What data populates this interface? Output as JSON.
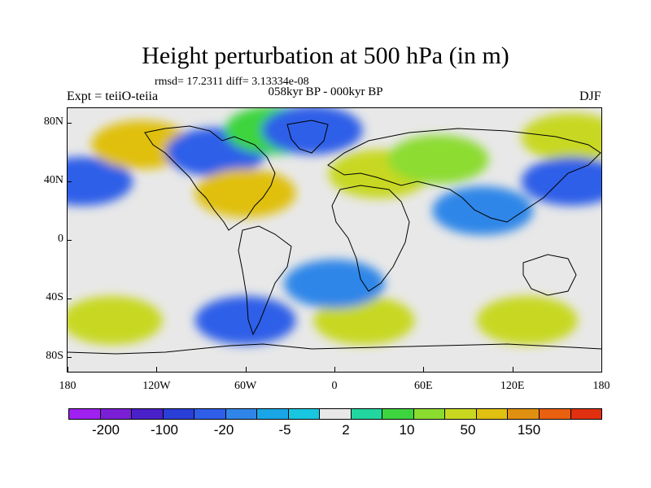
{
  "title": "Height perturbation at 500 hPa (in m)",
  "stats": "rmsd= 17.2311 diff= 3.13334e-08",
  "period": "058kyr BP - 000kyr BP",
  "experiment": "Expt = teiiO-teiia",
  "season": "DJF",
  "map": {
    "lon_range": [
      -180,
      180
    ],
    "lat_range": [
      -90,
      90
    ],
    "lat_labels": [
      {
        "lat": 80,
        "text": "80N"
      },
      {
        "lat": 40,
        "text": "40N"
      },
      {
        "lat": 0,
        "text": "0"
      },
      {
        "lat": -40,
        "text": "40S"
      },
      {
        "lat": -80,
        "text": "80S"
      }
    ],
    "lon_labels": [
      {
        "lon": -180,
        "text": "180"
      },
      {
        "lon": -120,
        "text": "120W"
      },
      {
        "lon": -60,
        "text": "60W"
      },
      {
        "lon": 0,
        "text": "0"
      },
      {
        "lon": 60,
        "text": "60E"
      },
      {
        "lon": 120,
        "text": "120E"
      },
      {
        "lon": 180,
        "text": "180"
      }
    ]
  },
  "colorbar": {
    "colors": [
      "#a020f0",
      "#7a1fd6",
      "#4a20c8",
      "#2a3fd8",
      "#2e5ee8",
      "#2f86e8",
      "#1aa6e6",
      "#18c6e0",
      "#e8e8e8",
      "#22d6a0",
      "#3ed43e",
      "#8cdc30",
      "#c8d820",
      "#e0c010",
      "#e09010",
      "#e86010",
      "#e03010"
    ],
    "labels": [
      "-200",
      "-100",
      "-20",
      "-5",
      "2",
      "10",
      "50",
      "150"
    ]
  },
  "chart_data": {
    "type": "heatmap",
    "title": "Height perturbation at 500 hPa (in m)",
    "units": "m",
    "xlim": [
      -180,
      180
    ],
    "ylim": [
      -90,
      90
    ],
    "anomaly_regions": [
      {
        "lon": -170,
        "lat": 40,
        "value": -30,
        "class": "low"
      },
      {
        "lon": -130,
        "lat": 65,
        "value": 60,
        "class": "high"
      },
      {
        "lon": -80,
        "lat": 60,
        "value": -40,
        "class": "low"
      },
      {
        "lon": -60,
        "lat": 32,
        "value": 60,
        "class": "high"
      },
      {
        "lon": -40,
        "lat": 75,
        "value": 10,
        "class": "high"
      },
      {
        "lon": -15,
        "lat": 75,
        "value": -20,
        "class": "low"
      },
      {
        "lon": 30,
        "lat": 45,
        "value": 40,
        "class": "high"
      },
      {
        "lon": 70,
        "lat": 55,
        "value": 15,
        "class": "high"
      },
      {
        "lon": 100,
        "lat": 20,
        "value": -15,
        "class": "low"
      },
      {
        "lon": 160,
        "lat": 70,
        "value": 40,
        "class": "high"
      },
      {
        "lon": 160,
        "lat": 40,
        "value": -20,
        "class": "low"
      },
      {
        "lon": -150,
        "lat": -55,
        "value": 40,
        "class": "high"
      },
      {
        "lon": -60,
        "lat": -55,
        "value": -30,
        "class": "low"
      },
      {
        "lon": 20,
        "lat": -55,
        "value": 30,
        "class": "high"
      },
      {
        "lon": 130,
        "lat": -55,
        "value": 40,
        "class": "high"
      },
      {
        "lon": 0,
        "lat": -30,
        "value": -10,
        "class": "low"
      }
    ]
  }
}
